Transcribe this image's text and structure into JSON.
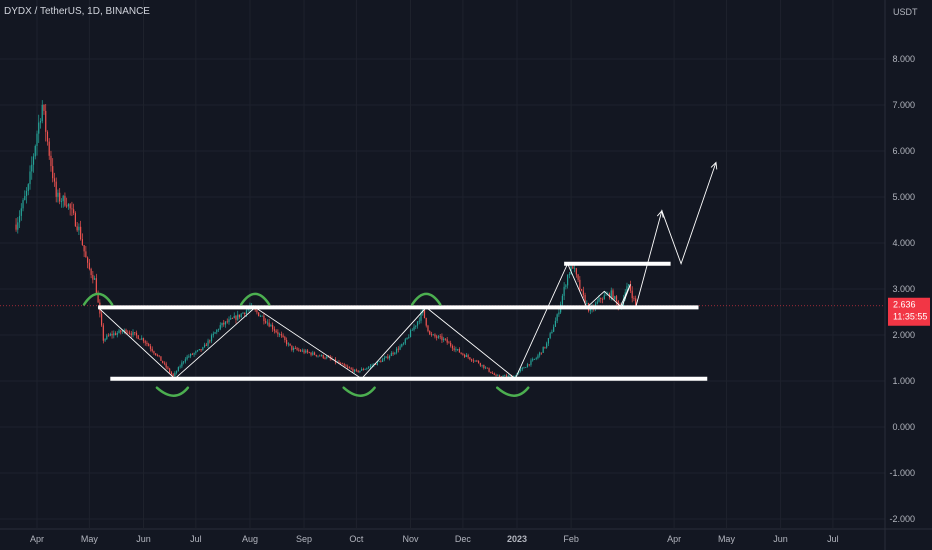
{
  "header": {
    "symbol_line": "DYDX / TetherUS, 1D, BINANCE"
  },
  "chart_data": {
    "type": "candlestick",
    "currency_label": "USDT",
    "y_ticks": [
      8,
      7,
      6,
      5,
      4,
      3,
      2,
      1,
      0,
      -1,
      -2
    ],
    "y_tick_labels": [
      "8.000",
      "7.000",
      "6.000",
      "5.000",
      "4.000",
      "3.000",
      "2.000",
      "1.000",
      "0.000",
      "-1.000",
      "-2.000"
    ],
    "ylim": [
      -2.2,
      8.6
    ],
    "x_range": [
      "2022-03-20",
      "2023-07-20"
    ],
    "x_ticks": [
      {
        "label": "Apr",
        "date": "2022-04-01",
        "bold": false
      },
      {
        "label": "May",
        "date": "2022-05-01",
        "bold": false
      },
      {
        "label": "Jun",
        "date": "2022-06-01",
        "bold": false
      },
      {
        "label": "Jul",
        "date": "2022-07-01",
        "bold": false
      },
      {
        "label": "Aug",
        "date": "2022-08-01",
        "bold": false
      },
      {
        "label": "Sep",
        "date": "2022-09-01",
        "bold": false
      },
      {
        "label": "Oct",
        "date": "2022-10-01",
        "bold": false
      },
      {
        "label": "Nov",
        "date": "2022-11-01",
        "bold": false
      },
      {
        "label": "Dec",
        "date": "2022-12-01",
        "bold": false
      },
      {
        "label": "2023",
        "date": "2023-01-01",
        "bold": true
      },
      {
        "label": "Feb",
        "date": "2023-02-01",
        "bold": false
      },
      {
        "label": "Apr",
        "date": "2023-04-01",
        "bold": false
      },
      {
        "label": "May",
        "date": "2023-05-01",
        "bold": false
      },
      {
        "label": "Jun",
        "date": "2023-06-01",
        "bold": false
      },
      {
        "label": "Jul",
        "date": "2023-07-01",
        "bold": false
      }
    ],
    "price_path": [
      [
        "2022-03-20",
        4.4
      ],
      [
        "2022-03-27",
        5.2
      ],
      [
        "2022-04-01",
        6.4
      ],
      [
        "2022-04-04",
        7.0
      ],
      [
        "2022-04-07",
        6.2
      ],
      [
        "2022-04-12",
        5.0
      ],
      [
        "2022-04-18",
        4.9
      ],
      [
        "2022-04-25",
        4.3
      ],
      [
        "2022-04-30",
        3.5
      ],
      [
        "2022-05-04",
        3.2
      ],
      [
        "2022-05-09",
        1.9
      ],
      [
        "2022-05-13",
        2.0
      ],
      [
        "2022-05-22",
        2.1
      ],
      [
        "2022-06-01",
        1.9
      ],
      [
        "2022-06-10",
        1.5
      ],
      [
        "2022-06-18",
        1.1
      ],
      [
        "2022-06-25",
        1.5
      ],
      [
        "2022-07-05",
        1.7
      ],
      [
        "2022-07-15",
        2.2
      ],
      [
        "2022-07-25",
        2.4
      ],
      [
        "2022-08-01",
        2.6
      ],
      [
        "2022-08-08",
        2.4
      ],
      [
        "2022-08-18",
        2.0
      ],
      [
        "2022-08-25",
        1.7
      ],
      [
        "2022-09-05",
        1.6
      ],
      [
        "2022-09-15",
        1.5
      ],
      [
        "2022-09-25",
        1.3
      ],
      [
        "2022-10-01",
        1.2
      ],
      [
        "2022-10-08",
        1.3
      ],
      [
        "2022-10-18",
        1.5
      ],
      [
        "2022-10-28",
        1.8
      ],
      [
        "2022-11-05",
        2.3
      ],
      [
        "2022-11-08",
        2.5
      ],
      [
        "2022-11-12",
        2.0
      ],
      [
        "2022-11-20",
        1.9
      ],
      [
        "2022-11-30",
        1.6
      ],
      [
        "2022-12-10",
        1.4
      ],
      [
        "2022-12-20",
        1.1
      ],
      [
        "2022-12-30",
        1.1
      ],
      [
        "2023-01-05",
        1.3
      ],
      [
        "2023-01-12",
        1.5
      ],
      [
        "2023-01-18",
        1.8
      ],
      [
        "2023-01-24",
        2.4
      ],
      [
        "2023-01-30",
        3.3
      ],
      [
        "2023-02-02",
        3.5
      ],
      [
        "2023-02-07",
        2.9
      ],
      [
        "2023-02-12",
        2.5
      ],
      [
        "2023-02-18",
        2.8
      ],
      [
        "2023-02-24",
        2.9
      ],
      [
        "2023-03-01",
        2.6
      ],
      [
        "2023-03-06",
        3.1
      ],
      [
        "2023-03-10",
        2.64
      ]
    ],
    "current_price": {
      "value": 2.636,
      "label": "2.636",
      "countdown": "11:35:55",
      "color": "#f23645"
    },
    "levels": [
      {
        "name": "support",
        "value": 1.05,
        "from": "2022-05-13",
        "to": "2023-04-20"
      },
      {
        "name": "mid",
        "value": 2.6,
        "from": "2022-05-06",
        "to": "2023-04-15"
      },
      {
        "name": "resistance",
        "value": 3.55,
        "from": "2023-01-28",
        "to": "2023-03-30"
      }
    ],
    "zigzag": [
      [
        "2022-05-06",
        2.6
      ],
      [
        "2022-06-19",
        1.05
      ],
      [
        "2022-08-04",
        2.6
      ],
      [
        "2022-10-04",
        1.05
      ],
      [
        "2022-11-10",
        2.6
      ],
      [
        "2022-12-31",
        1.05
      ],
      [
        "2023-01-30",
        3.55
      ],
      [
        "2023-02-10",
        2.6
      ],
      [
        "2023-02-20",
        2.95
      ],
      [
        "2023-03-02",
        2.6
      ],
      [
        "2023-03-07",
        3.1
      ],
      [
        "2023-03-01",
        2.6
      ]
    ],
    "projection": [
      [
        "2023-03-10",
        2.6
      ],
      [
        "2023-03-25",
        4.7
      ],
      [
        "2023-04-05",
        3.55
      ],
      [
        "2023-04-25",
        5.75
      ]
    ],
    "pivot_markers": [
      {
        "type": "top",
        "date": "2022-05-06",
        "value": 2.6
      },
      {
        "type": "bottom",
        "date": "2022-06-19",
        "value": 1.05
      },
      {
        "type": "top",
        "date": "2022-08-04",
        "value": 2.6
      },
      {
        "type": "bottom",
        "date": "2022-10-04",
        "value": 1.05
      },
      {
        "type": "top",
        "date": "2022-11-10",
        "value": 2.6
      },
      {
        "type": "bottom",
        "date": "2022-12-31",
        "value": 1.05
      }
    ],
    "colors": {
      "background": "#131722",
      "grid": "#1e222d",
      "axis_text": "#b2b5be",
      "up": "#26a69a",
      "down": "#ef5350",
      "levels": "#ffffff",
      "pivots": "#4caf50",
      "price_line": "#f23645"
    }
  }
}
